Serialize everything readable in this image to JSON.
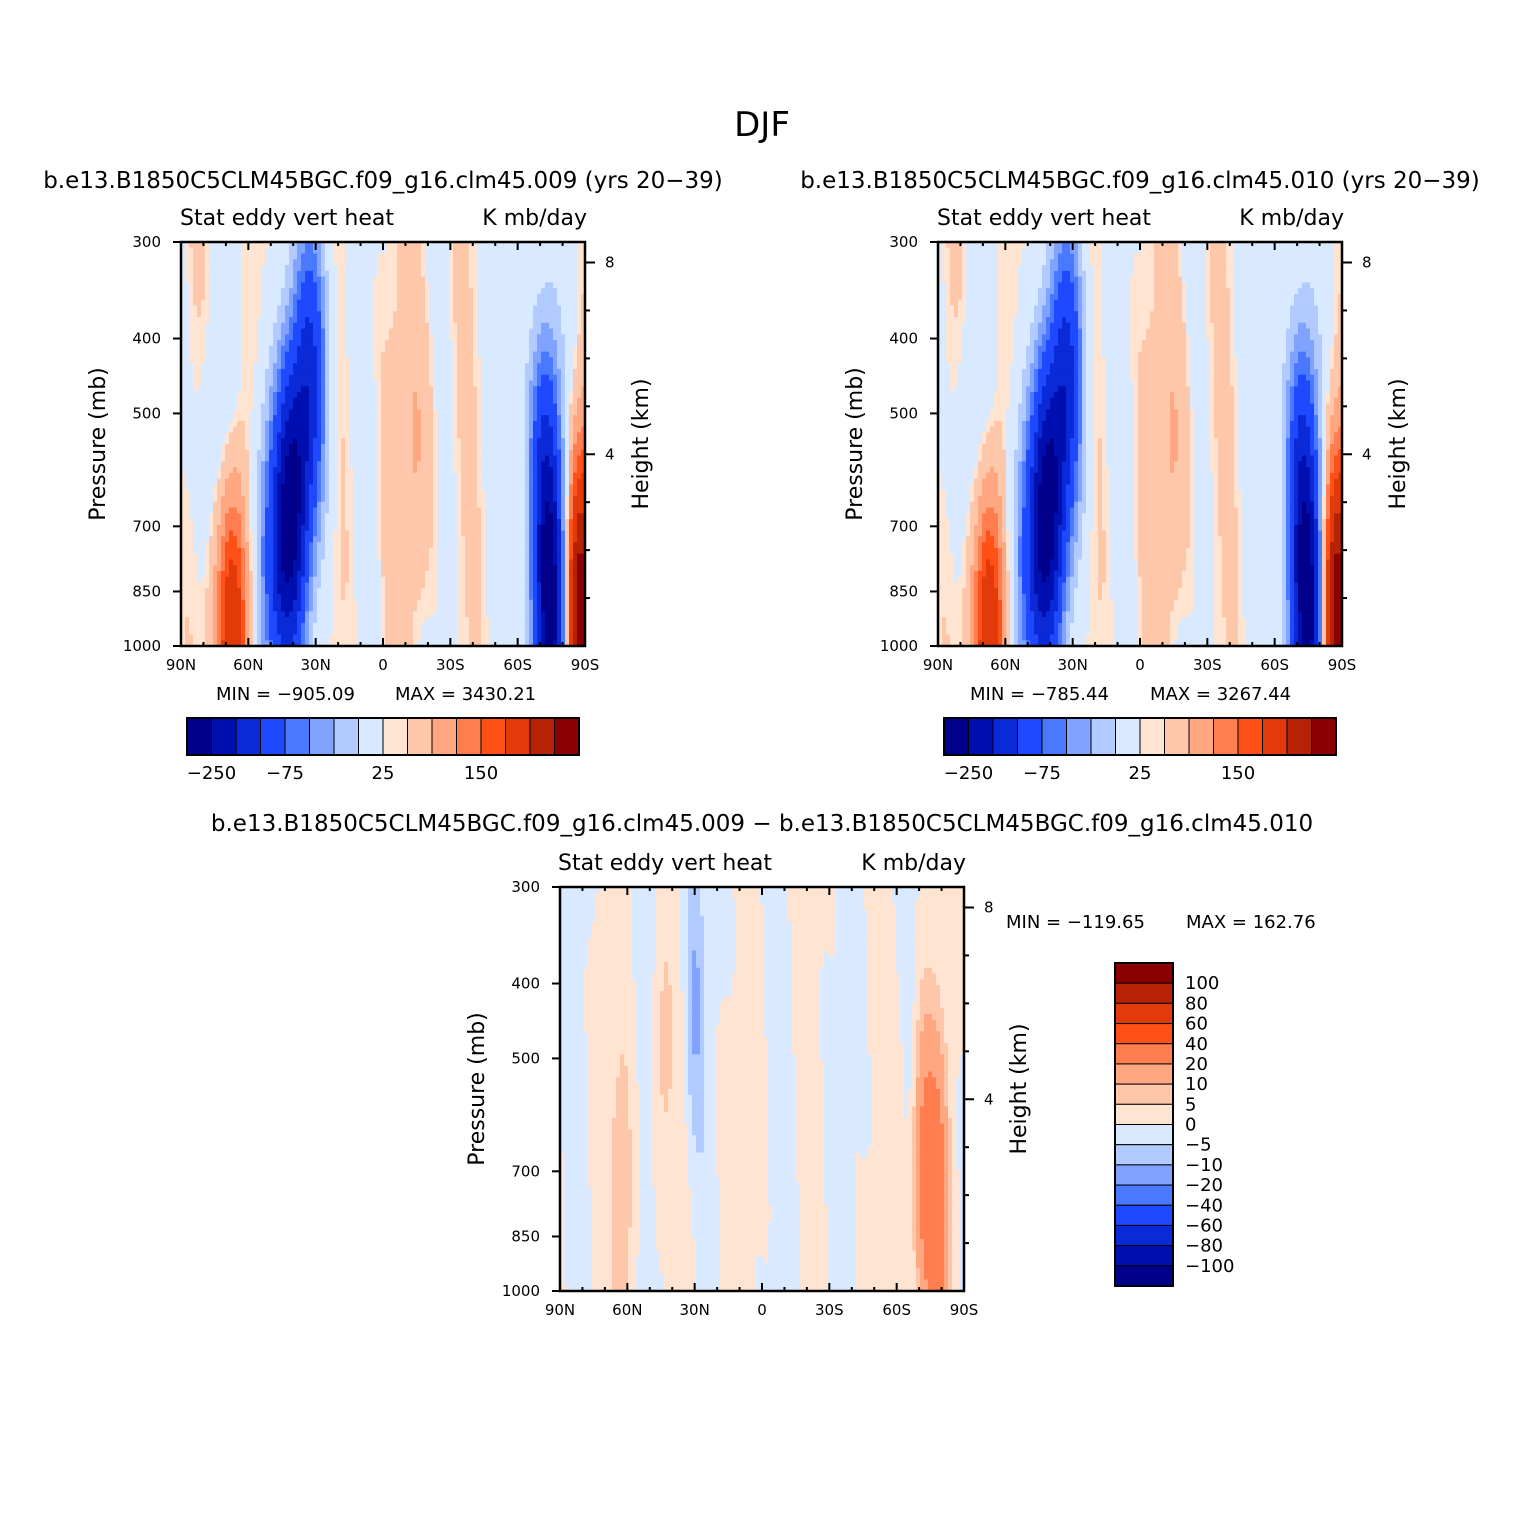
{
  "title": "DJF",
  "colors": {
    "below": [
      "#00008b",
      "#0010b0",
      "#0a2ad8",
      "#1f49ff",
      "#4a78ff",
      "#7fa3ff",
      "#b1caff",
      "#d9e9ff"
    ],
    "above": [
      "#ffe4d2",
      "#ffc7aa",
      "#ffa780",
      "#ff7d4f",
      "#ff5018",
      "#e33a0a",
      "#b72205",
      "#8b0000"
    ]
  },
  "chart_data": [
    {
      "type": "heatmap",
      "case": "b.e13.B1850C5CLM45BGC.f09_g16.clm45.009 (yrs 20−39)",
      "title_left": "Stat eddy vert heat",
      "title_right": "K mb/day",
      "xlabel": "",
      "ylabel": "Pressure (mb)",
      "ylabel_right": "Height (km)",
      "x_ticks": [
        "90N",
        "60N",
        "30N",
        "0",
        "30S",
        "60S",
        "90S"
      ],
      "y_ticks": [
        "300",
        "400",
        "500",
        "700",
        "850",
        "1000"
      ],
      "y_right_ticks": [
        "8",
        "4"
      ],
      "ylim": [
        1000,
        300
      ],
      "min_label": "MIN = −905.09",
      "max_label": "MAX = 3430.21",
      "min": -905.09,
      "max": 3430.21,
      "colorbar_labels": [
        "−250",
        "−75",
        "25",
        "150"
      ],
      "features": [
        {
          "lat": 40,
          "p": 650,
          "value": -200
        },
        {
          "lat": 32,
          "p": 450,
          "value": -150
        },
        {
          "lat": 45,
          "p": 750,
          "value": -120
        },
        {
          "lat": 52,
          "p": 800,
          "value": -60
        },
        {
          "lat": 75,
          "p": 550,
          "value": -20
        },
        {
          "lat": -15,
          "p": 550,
          "value": 25
        },
        {
          "lat": -5,
          "p": 650,
          "value": 8
        },
        {
          "lat": -72,
          "p": 600,
          "value": -150
        },
        {
          "lat": -75,
          "p": 950,
          "value": -250
        },
        {
          "lat": -88,
          "p": 900,
          "value": 250
        },
        {
          "lat": 67,
          "p": 990,
          "value": 150
        }
      ]
    },
    {
      "type": "heatmap",
      "case": "b.e13.B1850C5CLM45BGC.f09_g16.clm45.010 (yrs 20−39)",
      "title_left": "Stat eddy vert heat",
      "title_right": "K mb/day",
      "xlabel": "",
      "ylabel": "Pressure (mb)",
      "ylabel_right": "Height (km)",
      "x_ticks": [
        "90N",
        "60N",
        "30N",
        "0",
        "30S",
        "60S",
        "90S"
      ],
      "y_ticks": [
        "300",
        "400",
        "500",
        "700",
        "850",
        "1000"
      ],
      "y_right_ticks": [
        "8",
        "4"
      ],
      "ylim": [
        1000,
        300
      ],
      "min_label": "MIN = −785.44",
      "max_label": "MAX = 3267.44",
      "min": -785.44,
      "max": 3267.44,
      "colorbar_labels": [
        "−250",
        "−75",
        "25",
        "150"
      ],
      "features": [
        {
          "lat": 40,
          "p": 650,
          "value": -200
        },
        {
          "lat": 32,
          "p": 450,
          "value": -150
        },
        {
          "lat": 45,
          "p": 750,
          "value": -120
        },
        {
          "lat": 52,
          "p": 800,
          "value": -60
        },
        {
          "lat": 75,
          "p": 550,
          "value": -20
        },
        {
          "lat": -15,
          "p": 550,
          "value": 25
        },
        {
          "lat": -5,
          "p": 650,
          "value": 8
        },
        {
          "lat": -72,
          "p": 600,
          "value": -150
        },
        {
          "lat": -75,
          "p": 950,
          "value": -250
        },
        {
          "lat": -88,
          "p": 900,
          "value": 250
        },
        {
          "lat": 67,
          "p": 990,
          "value": 150
        }
      ]
    },
    {
      "type": "heatmap",
      "case": "b.e13.B1850C5CLM45BGC.f09_g16.clm45.009 − b.e13.B1850C5CLM45BGC.f09_g16.clm45.010",
      "title_left": "Stat eddy vert heat",
      "title_right": "K mb/day",
      "xlabel": "",
      "ylabel": "Pressure (mb)",
      "ylabel_right": "Height (km)",
      "x_ticks": [
        "90N",
        "60N",
        "30N",
        "0",
        "30S",
        "60S",
        "90S"
      ],
      "y_ticks": [
        "300",
        "400",
        "500",
        "700",
        "850",
        "1000"
      ],
      "y_right_ticks": [
        "8",
        "4"
      ],
      "ylim": [
        1000,
        300
      ],
      "min_label": "MIN = −119.65",
      "max_label": "MAX = 162.76",
      "min": -119.65,
      "max": 162.76,
      "colorbar_labels": [
        "100",
        "80",
        "60",
        "40",
        "20",
        "10",
        "5",
        "0",
        "−5",
        "−10",
        "−20",
        "−40",
        "−60",
        "−80",
        "−100"
      ],
      "features": [
        {
          "lat": 62,
          "p": 780,
          "value": 10
        },
        {
          "lat": 45,
          "p": 520,
          "value": 6
        },
        {
          "lat": 30,
          "p": 420,
          "value": -10
        },
        {
          "lat": 15,
          "p": 700,
          "value": 3
        },
        {
          "lat": -72,
          "p": 700,
          "value": 25
        },
        {
          "lat": -78,
          "p": 800,
          "value": 30
        },
        {
          "lat": -60,
          "p": 600,
          "value": 3
        },
        {
          "lat": 70,
          "p": 500,
          "value": 3
        }
      ]
    }
  ]
}
